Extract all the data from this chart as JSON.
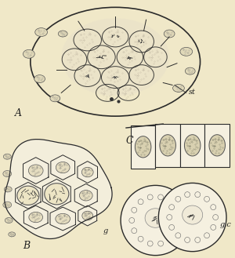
{
  "background_color": "#f0e8c8",
  "fig_width": 3.0,
  "fig_height": 3.29,
  "dpi": 100,
  "label_A": "A",
  "label_B": "B",
  "label_C": "C",
  "label_st": "st",
  "label_g": "g",
  "label_gc": "g.c",
  "text_color": "#222222",
  "cell_fill_white": "#f5f0e0",
  "cell_fill_stipple": "#e8e0c8",
  "outline_color": "#2a2a2a",
  "nucleus_dark": "#555555",
  "bg": "#f0e8c8"
}
